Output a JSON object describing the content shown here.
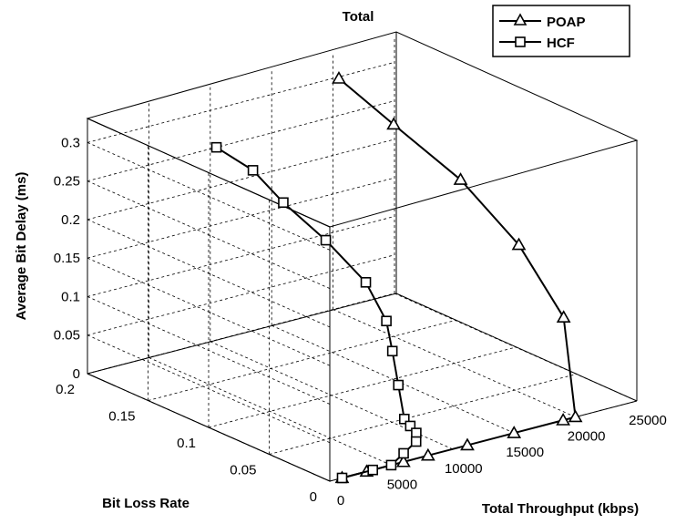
{
  "chart_data": {
    "type": "line3d",
    "title": "Total",
    "xlabel": "Total Throughput (kbps)",
    "ylabel": "Bit Loss Rate",
    "zlabel": "Average Bit Delay (ms)",
    "xlim": [
      0,
      25000
    ],
    "ylim": [
      0,
      0.2
    ],
    "zlim": [
      0,
      0.33
    ],
    "x_ticks": [
      "0",
      "5000",
      "10000",
      "15000",
      "20000",
      "25000"
    ],
    "y_ticks": [
      "0",
      "0.05",
      "0.1",
      "0.15",
      "0.2"
    ],
    "z_ticks": [
      "0",
      "0.05",
      "0.1",
      "0.15",
      "0.2",
      "0.25",
      "0.3"
    ],
    "grid": true,
    "legend_position": "top-right",
    "series": [
      {
        "name": "POAP",
        "marker": "triangle",
        "points": [
          {
            "x": 18500,
            "y": 0.18,
            "z": 0.32
          },
          {
            "x": 20000,
            "y": 0.15,
            "z": 0.275
          },
          {
            "x": 21500,
            "y": 0.11,
            "z": 0.225
          },
          {
            "x": 22300,
            "y": 0.07,
            "z": 0.165
          },
          {
            "x": 22000,
            "y": 0.03,
            "z": 0.1
          },
          {
            "x": 20000,
            "y": 0.0,
            "z": 0.0
          },
          {
            "x": 19000,
            "y": 0.0,
            "z": 0.0
          },
          {
            "x": 15000,
            "y": 0.0,
            "z": 0.0
          },
          {
            "x": 11200,
            "y": 0.0,
            "z": 0.0
          },
          {
            "x": 8000,
            "y": 0.0,
            "z": 0.0
          },
          {
            "x": 6000,
            "y": 0.0,
            "z": 0.0
          },
          {
            "x": 3000,
            "y": 0.0,
            "z": 0.0
          },
          {
            "x": 1000,
            "y": 0.0,
            "z": 0.0
          }
        ]
      },
      {
        "name": "HCF",
        "marker": "square",
        "points": [
          {
            "x": 10500,
            "y": 0.2,
            "z": 0.25
          },
          {
            "x": 11500,
            "y": 0.18,
            "z": 0.23
          },
          {
            "x": 12000,
            "y": 0.16,
            "z": 0.2
          },
          {
            "x": 12500,
            "y": 0.13,
            "z": 0.17
          },
          {
            "x": 12800,
            "y": 0.1,
            "z": 0.135
          },
          {
            "x": 12500,
            "y": 0.08,
            "z": 0.1
          },
          {
            "x": 12000,
            "y": 0.07,
            "z": 0.07
          },
          {
            "x": 11500,
            "y": 0.06,
            "z": 0.035
          },
          {
            "x": 11000,
            "y": 0.05,
            "z": 0.0
          },
          {
            "x": 10500,
            "y": 0.04,
            "z": 0.0
          },
          {
            "x": 10000,
            "y": 0.03,
            "z": 0.0
          },
          {
            "x": 9000,
            "y": 0.02,
            "z": 0.0
          },
          {
            "x": 7000,
            "y": 0.01,
            "z": 0.0
          },
          {
            "x": 5000,
            "y": 0.0,
            "z": 0.0
          },
          {
            "x": 3500,
            "y": 0.0,
            "z": 0.0
          },
          {
            "x": 1000,
            "y": 0.0,
            "z": 0.0
          }
        ]
      }
    ]
  }
}
